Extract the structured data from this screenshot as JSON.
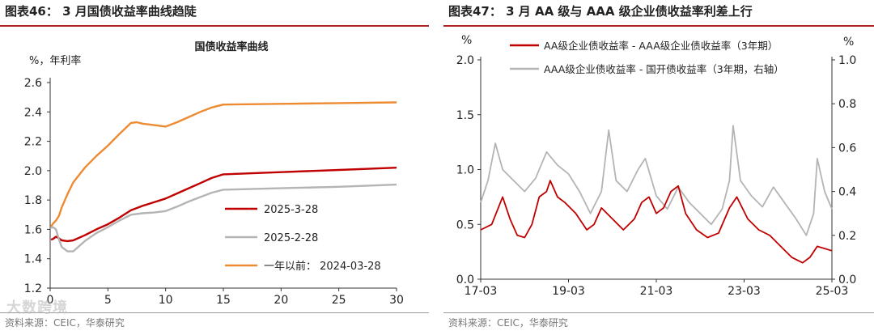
{
  "figures": [
    {
      "title": "图表46： 3 月国债收益率曲线趋陡",
      "source": "资料来源：CEIC，华泰研究"
    },
    {
      "title": "图表47： 3 月 AA 级与 AAA 级企业债收益率利差上行",
      "source": "资料来源：CEIC，华泰研究"
    }
  ],
  "watermark": "大数跨境",
  "colors": {
    "red": "#c00000",
    "gray": "#b4b4b4",
    "orange": "#ed8b33",
    "rule": "#b22222"
  },
  "chart_data": [
    {
      "type": "line",
      "title": "国债收益率曲线",
      "ylabel": "%，年利率",
      "xlabel": "",
      "xlim": [
        0,
        30
      ],
      "ylim": [
        1.2,
        2.6
      ],
      "xticks": [
        "0",
        "5",
        "10",
        "15",
        "20",
        "25",
        "30"
      ],
      "yticks": [
        "1.2",
        "1.4",
        "1.6",
        "1.8",
        "2.0",
        "2.2",
        "2.4",
        "2.6"
      ],
      "legend_position": "bottom-right",
      "series": [
        {
          "name": "2025-3-28",
          "color": "#c00000",
          "points": [
            [
              0.08,
              1.53
            ],
            [
              0.25,
              1.535
            ],
            [
              0.5,
              1.55
            ],
            [
              0.75,
              1.54
            ],
            [
              1,
              1.525
            ],
            [
              1.5,
              1.52
            ],
            [
              2,
              1.525
            ],
            [
              3,
              1.56
            ],
            [
              4,
              1.6
            ],
            [
              5,
              1.635
            ],
            [
              6,
              1.68
            ],
            [
              7,
              1.73
            ],
            [
              8,
              1.76
            ],
            [
              9,
              1.785
            ],
            [
              10,
              1.81
            ],
            [
              11,
              1.845
            ],
            [
              12,
              1.88
            ],
            [
              13,
              1.915
            ],
            [
              14,
              1.95
            ],
            [
              15,
              1.975
            ],
            [
              20,
              1.99
            ],
            [
              25,
              2.005
            ],
            [
              30,
              2.02
            ]
          ]
        },
        {
          "name": "2025-2-28",
          "color": "#b4b4b4",
          "points": [
            [
              0.08,
              1.61
            ],
            [
              0.25,
              1.615
            ],
            [
              0.5,
              1.6
            ],
            [
              0.75,
              1.535
            ],
            [
              1,
              1.48
            ],
            [
              1.5,
              1.45
            ],
            [
              2,
              1.45
            ],
            [
              3,
              1.52
            ],
            [
              4,
              1.575
            ],
            [
              5,
              1.615
            ],
            [
              6,
              1.66
            ],
            [
              7,
              1.7
            ],
            [
              8,
              1.71
            ],
            [
              9,
              1.715
            ],
            [
              10,
              1.725
            ],
            [
              11,
              1.755
            ],
            [
              12,
              1.79
            ],
            [
              13,
              1.82
            ],
            [
              14,
              1.85
            ],
            [
              15,
              1.87
            ],
            [
              20,
              1.88
            ],
            [
              25,
              1.89
            ],
            [
              30,
              1.905
            ]
          ]
        },
        {
          "name": "一年以前：  2024-03-28",
          "color": "#ed8b33",
          "points": [
            [
              0.08,
              1.62
            ],
            [
              0.25,
              1.64
            ],
            [
              0.5,
              1.66
            ],
            [
              0.75,
              1.69
            ],
            [
              1,
              1.75
            ],
            [
              1.5,
              1.84
            ],
            [
              2,
              1.92
            ],
            [
              3,
              2.02
            ],
            [
              4,
              2.1
            ],
            [
              5,
              2.17
            ],
            [
              6,
              2.25
            ],
            [
              7,
              2.325
            ],
            [
              7.5,
              2.33
            ],
            [
              8,
              2.32
            ],
            [
              9,
              2.31
            ],
            [
              10,
              2.3
            ],
            [
              11,
              2.33
            ],
            [
              12,
              2.365
            ],
            [
              13,
              2.4
            ],
            [
              14,
              2.43
            ],
            [
              15,
              2.45
            ],
            [
              20,
              2.455
            ],
            [
              25,
              2.46
            ],
            [
              30,
              2.465
            ]
          ]
        }
      ]
    },
    {
      "type": "line",
      "title": "",
      "ylabel": "%",
      "y2label": "%",
      "xlabel": "",
      "xlim": [
        "2017-03",
        "2025-03"
      ],
      "ylim": [
        0.0,
        2.0
      ],
      "y2lim": [
        0.0,
        1.0
      ],
      "xticks": [
        "17-03",
        "19-03",
        "21-03",
        "23-03",
        "25-03"
      ],
      "yticks": [
        "0.0",
        "0.5",
        "1.0",
        "1.5",
        "2.0"
      ],
      "y2ticks": [
        "0.0",
        "0.2",
        "0.4",
        "0.6",
        "0.8",
        "1.0"
      ],
      "legend_position": "top",
      "series": [
        {
          "name": "AA级企业债收益率 - AAA级企业债收益率（3年期）",
          "color": "#c00000",
          "axis": "left",
          "points": [
            [
              "2017-03",
              0.45
            ],
            [
              "2017-06",
              0.5
            ],
            [
              "2017-09",
              0.75
            ],
            [
              "2017-11",
              0.55
            ],
            [
              "2018-01",
              0.4
            ],
            [
              "2018-03",
              0.38
            ],
            [
              "2018-05",
              0.5
            ],
            [
              "2018-07",
              0.75
            ],
            [
              "2018-09",
              0.8
            ],
            [
              "2018-10",
              0.9
            ],
            [
              "2018-12",
              0.75
            ],
            [
              "2019-02",
              0.7
            ],
            [
              "2019-05",
              0.6
            ],
            [
              "2019-08",
              0.45
            ],
            [
              "2019-10",
              0.5
            ],
            [
              "2019-12",
              0.65
            ],
            [
              "2020-03",
              0.55
            ],
            [
              "2020-06",
              0.45
            ],
            [
              "2020-09",
              0.55
            ],
            [
              "2020-11",
              0.7
            ],
            [
              "2021-01",
              0.75
            ],
            [
              "2021-03",
              0.6
            ],
            [
              "2021-05",
              0.65
            ],
            [
              "2021-07",
              0.8
            ],
            [
              "2021-09",
              0.85
            ],
            [
              "2021-11",
              0.6
            ],
            [
              "2022-02",
              0.45
            ],
            [
              "2022-05",
              0.38
            ],
            [
              "2022-08",
              0.42
            ],
            [
              "2022-11",
              0.65
            ],
            [
              "2023-01",
              0.75
            ],
            [
              "2023-04",
              0.55
            ],
            [
              "2023-07",
              0.45
            ],
            [
              "2023-10",
              0.4
            ],
            [
              "2024-01",
              0.3
            ],
            [
              "2024-04",
              0.2
            ],
            [
              "2024-07",
              0.15
            ],
            [
              "2024-09",
              0.2
            ],
            [
              "2024-11",
              0.3
            ],
            [
              "2025-01",
              0.28
            ],
            [
              "2025-03",
              0.26
            ]
          ]
        },
        {
          "name": "AAA级企业债收益率 - 国开债收益率（3年期，右轴）",
          "color": "#b4b4b4",
          "axis": "right",
          "points": [
            [
              "2017-03",
              0.35
            ],
            [
              "2017-05",
              0.45
            ],
            [
              "2017-07",
              0.62
            ],
            [
              "2017-09",
              0.5
            ],
            [
              "2017-12",
              0.45
            ],
            [
              "2018-03",
              0.4
            ],
            [
              "2018-06",
              0.46
            ],
            [
              "2018-09",
              0.58
            ],
            [
              "2018-12",
              0.52
            ],
            [
              "2019-03",
              0.48
            ],
            [
              "2019-06",
              0.4
            ],
            [
              "2019-09",
              0.3
            ],
            [
              "2019-12",
              0.4
            ],
            [
              "2020-02",
              0.68
            ],
            [
              "2020-04",
              0.45
            ],
            [
              "2020-07",
              0.4
            ],
            [
              "2020-10",
              0.5
            ],
            [
              "2020-12",
              0.55
            ],
            [
              "2021-03",
              0.38
            ],
            [
              "2021-06",
              0.32
            ],
            [
              "2021-09",
              0.42
            ],
            [
              "2021-12",
              0.35
            ],
            [
              "2022-03",
              0.3
            ],
            [
              "2022-06",
              0.25
            ],
            [
              "2022-09",
              0.32
            ],
            [
              "2022-11",
              0.45
            ],
            [
              "2022-12",
              0.7
            ],
            [
              "2023-02",
              0.45
            ],
            [
              "2023-05",
              0.38
            ],
            [
              "2023-08",
              0.33
            ],
            [
              "2023-11",
              0.42
            ],
            [
              "2024-02",
              0.35
            ],
            [
              "2024-05",
              0.28
            ],
            [
              "2024-08",
              0.2
            ],
            [
              "2024-10",
              0.3
            ],
            [
              "2024-11",
              0.55
            ],
            [
              "2025-01",
              0.4
            ],
            [
              "2025-03",
              0.32
            ]
          ]
        }
      ]
    }
  ]
}
